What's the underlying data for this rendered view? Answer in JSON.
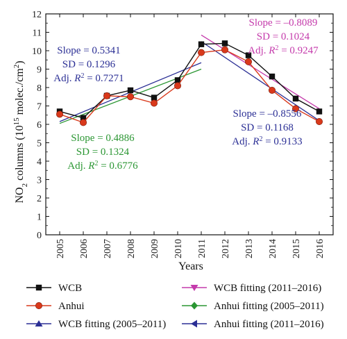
{
  "chart_data": {
    "type": "line",
    "xlabel": "Years",
    "ylabel": {
      "prefix": "NO",
      "sub": "2",
      "mid": " columns (10",
      "sup": "15",
      "suffix_pre": " molec./cm",
      "sup2": "2",
      "suffix": ")"
    },
    "x": [
      2005,
      2006,
      2007,
      2008,
      2009,
      2010,
      2011,
      2012,
      2013,
      2014,
      2015,
      2016
    ],
    "xlim": [
      2005,
      2016
    ],
    "ylim": [
      0,
      12
    ],
    "yticks": [
      0,
      1,
      2,
      3,
      4,
      5,
      6,
      7,
      8,
      9,
      10,
      11,
      12
    ],
    "grid": false,
    "series": [
      {
        "name": "WCB",
        "color": "#111111",
        "marker": "square",
        "x": [
          2005,
          2006,
          2007,
          2008,
          2009,
          2010,
          2011,
          2012,
          2013,
          2014,
          2015,
          2016
        ],
        "values": [
          6.7,
          6.35,
          7.55,
          7.85,
          7.45,
          8.4,
          10.35,
          10.4,
          9.75,
          8.6,
          7.4,
          6.7
        ]
      },
      {
        "name": "Anhui",
        "color": "#d9391b",
        "marker": "circle",
        "x": [
          2005,
          2006,
          2007,
          2008,
          2009,
          2010,
          2011,
          2012,
          2013,
          2014,
          2015,
          2016
        ],
        "values": [
          6.55,
          6.1,
          7.55,
          7.5,
          7.15,
          8.1,
          9.9,
          10.05,
          9.4,
          7.85,
          6.85,
          6.15
        ]
      }
    ],
    "fits": [
      {
        "name": "WCB fitting (2005–2011)",
        "color": "#2b2f95",
        "marker": "triangle-up",
        "x": [
          2005,
          2011
        ],
        "values": [
          6.15,
          9.35
        ]
      },
      {
        "name": "WCB fitting (2011–2016)",
        "color": "#c43aab",
        "marker": "triangle-down",
        "x": [
          2011,
          2016
        ],
        "values": [
          10.85,
          6.85
        ]
      },
      {
        "name": "Anhui fitting (2005–2011)",
        "color": "#2a9632",
        "marker": "diamond",
        "x": [
          2005,
          2011
        ],
        "values": [
          6.05,
          9.0
        ]
      },
      {
        "name": "Anhui fitting (2011–2016)",
        "color": "#2b2f95",
        "marker": "triangle-left",
        "x": [
          2011,
          2016
        ],
        "values": [
          10.5,
          6.2
        ]
      }
    ],
    "legend_order": [
      0,
      3,
      1,
      4,
      2,
      5
    ],
    "annotations": [
      {
        "color": "#2b2f95",
        "slope": "Slope = 0.5341",
        "sd": "SD = 0.1296",
        "adj_pre": "Adj. ",
        "adj_r": "R",
        "adj_sup": "2",
        "adj_val": " = 0.7271"
      },
      {
        "color": "#2a9632",
        "slope": "Slope = 0.4886",
        "sd": "SD = 0.1324",
        "adj_pre": "Adj. ",
        "adj_r": "R",
        "adj_sup": "2",
        "adj_val": " = 0.6776"
      },
      {
        "color": "#c43aab",
        "slope": "Slope = –0.8089",
        "sd": "SD = 0.1024",
        "adj_pre": "Adj. ",
        "adj_r": "R",
        "adj_sup": "2",
        "adj_val": " = 0.9247"
      },
      {
        "color": "#2b2f95",
        "slope": "Slope = –0.8556",
        "sd": "SD = 0.1168",
        "adj_pre": "Adj. ",
        "adj_r": "R",
        "adj_sup": "2",
        "adj_val": " = 0.9133"
      }
    ]
  }
}
